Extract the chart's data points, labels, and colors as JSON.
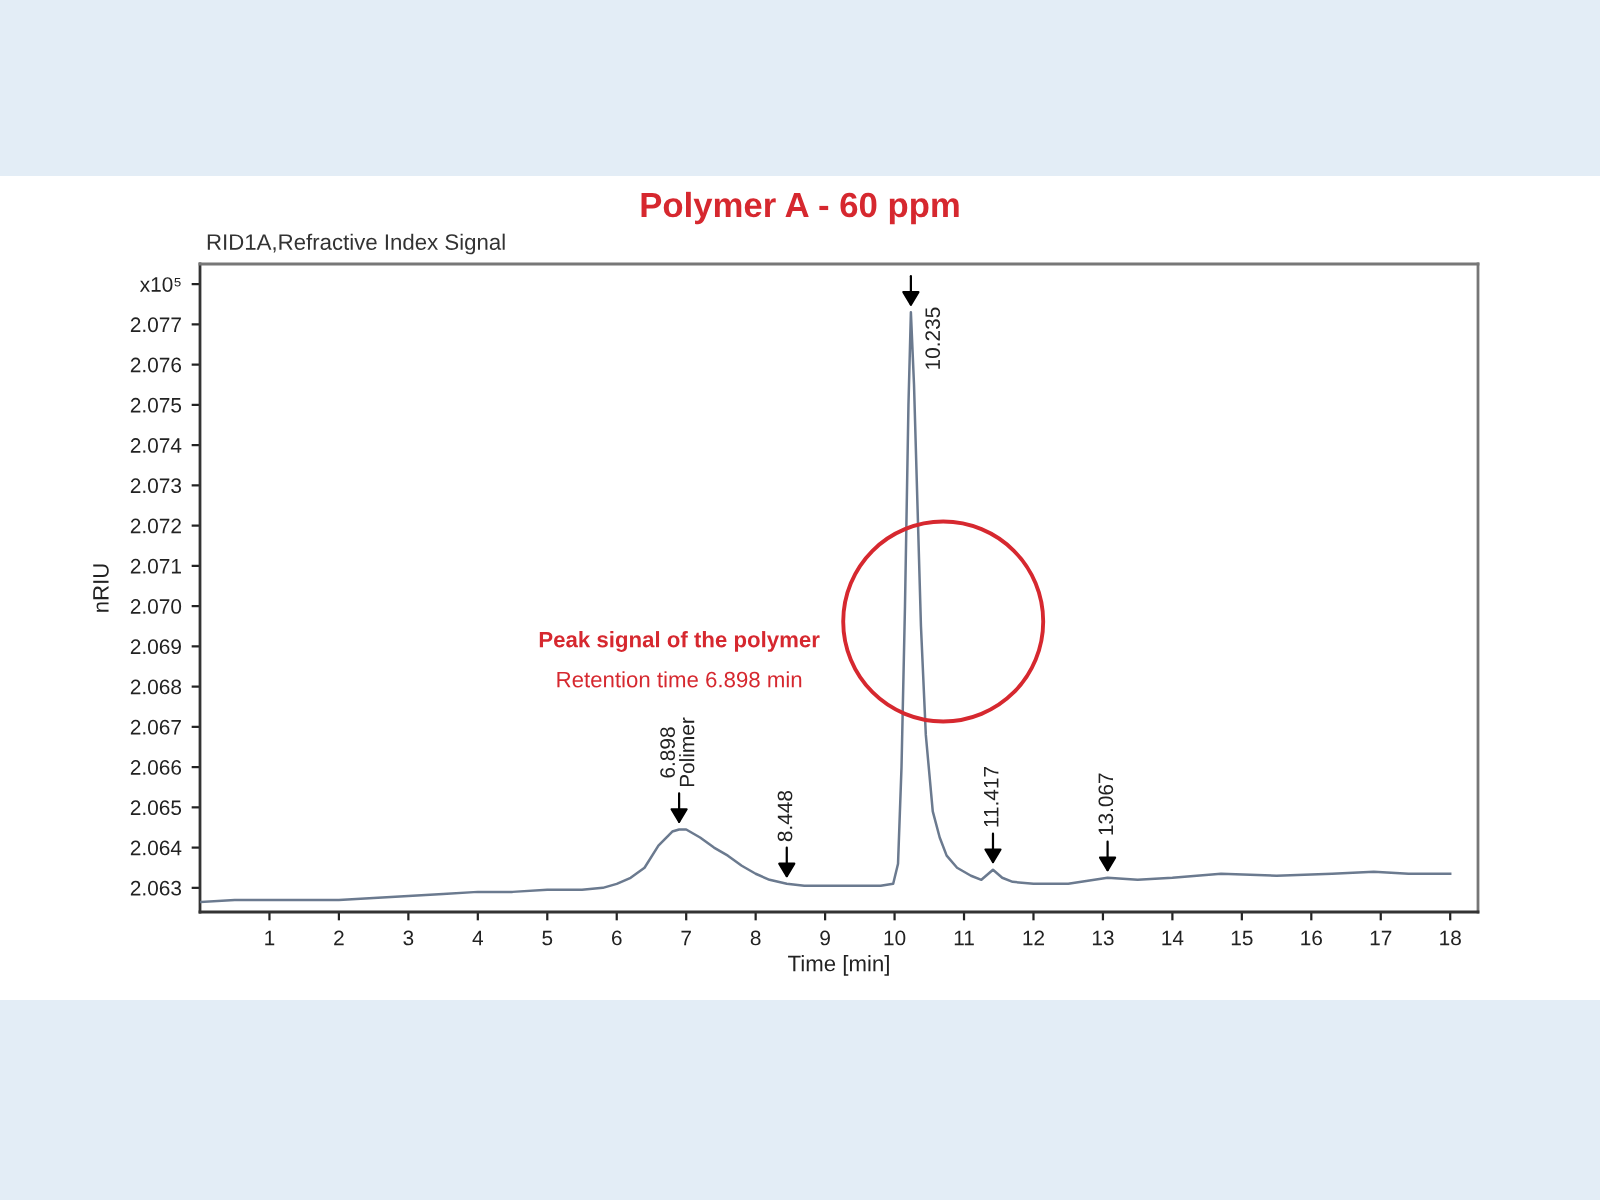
{
  "chart_data": {
    "type": "line",
    "title": "Polymer A - 60 ppm",
    "subtitle": "RID1A,Refractive Index Signal",
    "xlabel": "Time [min]",
    "ylabel": "nRIU",
    "x": [
      0.02,
      0.5,
      1,
      1.5,
      2,
      2.5,
      3,
      3.5,
      4,
      4.5,
      5,
      5.5,
      5.8,
      6.0,
      6.2,
      6.4,
      6.6,
      6.8,
      6.898,
      7.0,
      7.2,
      7.4,
      7.6,
      7.8,
      8.0,
      8.2,
      8.448,
      8.7,
      9.0,
      9.4,
      9.8,
      9.98,
      10.05,
      10.1,
      10.15,
      10.2,
      10.235,
      10.28,
      10.33,
      10.38,
      10.45,
      10.55,
      10.65,
      10.75,
      10.9,
      11.1,
      11.25,
      11.417,
      11.55,
      11.7,
      12.0,
      12.5,
      13.067,
      13.5,
      14.0,
      14.7,
      15.5,
      16.3,
      16.9,
      17.4,
      18.0
    ],
    "series": [
      {
        "color": "#6b7a8f",
        "values": [
          2.06265,
          2.0627,
          2.0627,
          2.0627,
          2.0627,
          2.06275,
          2.0628,
          2.06285,
          2.0629,
          2.0629,
          2.06295,
          2.06295,
          2.063,
          2.0631,
          2.06325,
          2.0635,
          2.06405,
          2.0644,
          2.06445,
          2.06445,
          2.06425,
          2.064,
          2.0638,
          2.06355,
          2.06335,
          2.0632,
          2.0631,
          2.06305,
          2.06305,
          2.06305,
          2.06305,
          2.0631,
          2.0636,
          2.066,
          2.07,
          2.075,
          2.0773,
          2.0755,
          2.0725,
          2.0695,
          2.0668,
          2.0649,
          2.06425,
          2.0638,
          2.0635,
          2.0633,
          2.0632,
          2.06345,
          2.06325,
          2.06315,
          2.0631,
          2.0631,
          2.06325,
          2.0632,
          2.06325,
          2.06335,
          2.0633,
          2.06335,
          2.0634,
          2.06335,
          2.06335
        ]
      }
    ],
    "xlim": [
      0,
      18.4
    ],
    "ylim": [
      2.0624,
      2.0785
    ],
    "xticks": [
      1,
      2,
      3,
      4,
      5,
      6,
      7,
      8,
      9,
      10,
      11,
      12,
      13,
      14,
      15,
      16,
      17,
      18
    ],
    "yticks": [
      2.063,
      2.064,
      2.065,
      2.066,
      2.067,
      2.068,
      2.069,
      {
        "value": 2.07,
        "label": "2.070"
      },
      2.071,
      2.072,
      2.073,
      2.074,
      2.075,
      2.076,
      2.077,
      {
        "value": 2.078,
        "label": "x10⁵"
      }
    ],
    "annotations": [
      {
        "text": "6.898\nPolimer",
        "x": 6.898,
        "y": 2.06445
      },
      {
        "text": "8.448",
        "x": 8.448,
        "y": 2.0631
      },
      {
        "text": "10.235",
        "x": 10.235,
        "y": 2.0773
      },
      {
        "text": "11.417",
        "x": 11.417,
        "y": 2.06345
      },
      {
        "text": "13.067",
        "x": 13.067,
        "y": 2.06325
      },
      "Peak signal of the polymer",
      "Retention time 6.898 min"
    ]
  }
}
